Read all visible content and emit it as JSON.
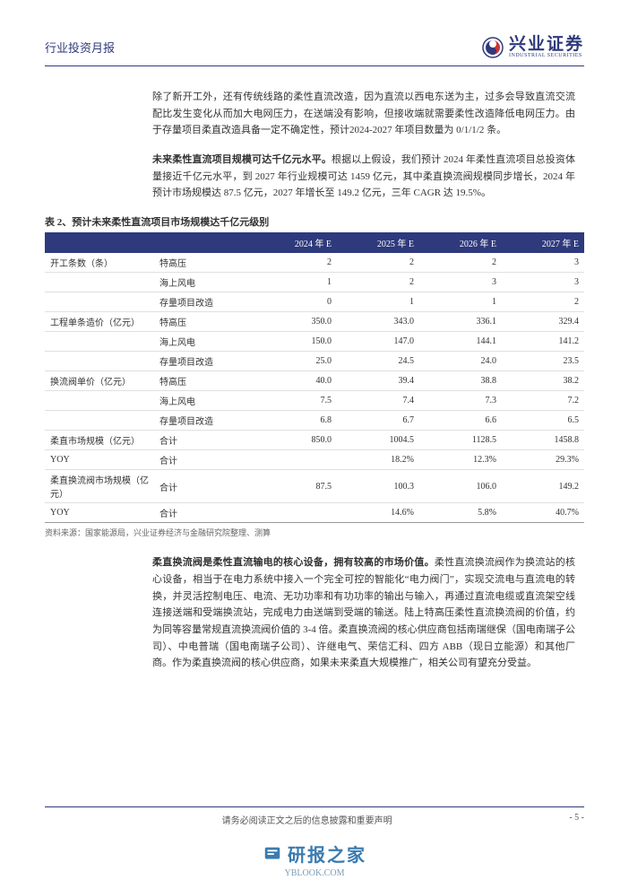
{
  "header": {
    "title": "行业投资月报",
    "logo_cn": "兴业证券",
    "logo_en": "INDUSTRIAL SECURITIES"
  },
  "paragraphs": {
    "p1": "除了新开工外，还有传统线路的柔性直流改造，因为直流以西电东送为主，过多会导致直流交流配比发生变化从而加大电网压力，在送端没有影响，但接收端就需要柔性改造降低电网压力。由于存量项目柔直改造具备一定不确定性，预计2024-2027 年项目数量为 0/1/1/2 条。",
    "p2_bold": "未来柔性直流项目规模可达千亿元水平。",
    "p2_rest": "根据以上假设，我们预计 2024 年柔性直流项目总投资体量接近千亿元水平，到 2027 年行业规模可达 1459 亿元，其中柔直换流阀规模同步增长，2024 年预计市场规模达 87.5 亿元，2027 年增长至 149.2 亿元，三年 CAGR 达 19.5%。",
    "p3_bold": "柔直换流阀是柔性直流输电的核心设备，拥有较高的市场价值。",
    "p3_rest": "柔性直流换流阀作为换流站的核心设备，相当于在电力系统中接入一个完全可控的智能化“电力阀门”，实现交流电与直流电的转换，并灵活控制电压、电流、无功功率和有功功率的输出与输入，再通过直流电缆或直流架空线连接送端和受端换流站，完成电力由送端到受端的输送。陆上特高压柔性直流换流阀的价值，约为同等容量常规直流换流阀价值的 3-4 倍。柔直换流阀的核心供应商包括南瑞继保（国电南瑞子公司）、中电普瑞（国电南瑞子公司）、许继电气、荣信汇科、四方 ABB（现日立能源）和其他厂商。作为柔直换流阀的核心供应商，如果未来柔直大规模推广，相关公司有望充分受益。"
  },
  "table": {
    "caption": "表 2、预计未来柔性直流项目市场规模达千亿元级别",
    "headers": [
      "",
      "",
      "2024 年 E",
      "2025 年 E",
      "2026 年 E",
      "2027 年 E"
    ],
    "rows": [
      {
        "group": "开工条数（条）",
        "sub": "特高压",
        "c": [
          "2",
          "2",
          "2",
          "3"
        ]
      },
      {
        "group": "",
        "sub": "海上风电",
        "c": [
          "1",
          "2",
          "3",
          "3"
        ]
      },
      {
        "group": "",
        "sub": "存量项目改造",
        "c": [
          "0",
          "1",
          "1",
          "2"
        ]
      },
      {
        "group": "工程单条造价（亿元）",
        "sub": "特高压",
        "c": [
          "350.0",
          "343.0",
          "336.1",
          "329.4"
        ]
      },
      {
        "group": "",
        "sub": "海上风电",
        "c": [
          "150.0",
          "147.0",
          "144.1",
          "141.2"
        ]
      },
      {
        "group": "",
        "sub": "存量项目改造",
        "c": [
          "25.0",
          "24.5",
          "24.0",
          "23.5"
        ]
      },
      {
        "group": "换流阀单价（亿元）",
        "sub": "特高压",
        "c": [
          "40.0",
          "39.4",
          "38.8",
          "38.2"
        ]
      },
      {
        "group": "",
        "sub": "海上风电",
        "c": [
          "7.5",
          "7.4",
          "7.3",
          "7.2"
        ]
      },
      {
        "group": "",
        "sub": "存量项目改造",
        "c": [
          "6.8",
          "6.7",
          "6.6",
          "6.5"
        ]
      },
      {
        "group": "柔直市场规模（亿元）",
        "sub": "合计",
        "c": [
          "850.0",
          "1004.5",
          "1128.5",
          "1458.8"
        ]
      },
      {
        "group": "YOY",
        "sub": "合计",
        "c": [
          "",
          "18.2%",
          "12.3%",
          "29.3%"
        ]
      },
      {
        "group": "柔直换流阀市场规模（亿元）",
        "sub": "合计",
        "c": [
          "87.5",
          "100.3",
          "106.0",
          "149.2"
        ]
      },
      {
        "group": "YOY",
        "sub": "合计",
        "c": [
          "",
          "14.6%",
          "5.8%",
          "40.7%"
        ]
      }
    ],
    "header_bg": "#2e3a7c",
    "header_fg": "#ffffff",
    "grid_color": "#e0e0e0",
    "source": "资料来源：国家能源局，兴业证券经济与金融研究院整理、测算"
  },
  "footer": {
    "notice": "请务必阅读正文之后的信息披露和重要声明",
    "page": "- 5 -"
  },
  "watermark": {
    "name": "研报之家",
    "url": "YBLOOK.COM"
  }
}
